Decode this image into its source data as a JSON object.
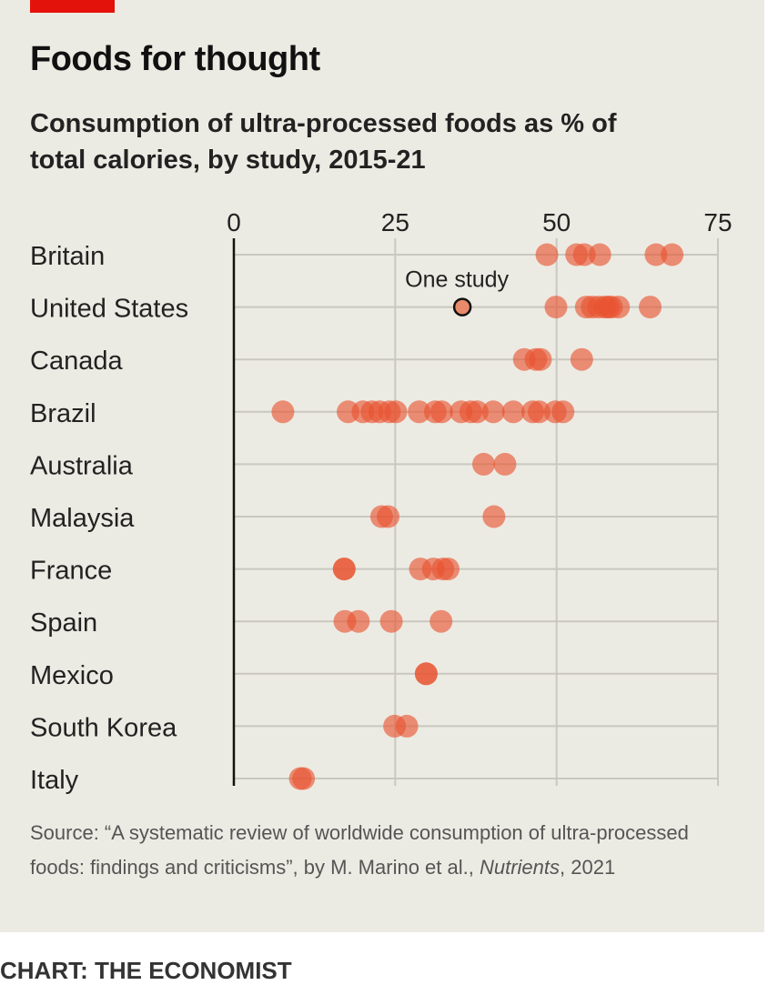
{
  "chart_data": {
    "type": "scatter",
    "title": "Foods for thought",
    "subtitle": "Consumption of ultra-processed foods as % of total calories, by study, 2015-21",
    "xlim": [
      0,
      75
    ],
    "xticks": [
      "0",
      "25",
      "50",
      "75"
    ],
    "xtick_values": [
      0,
      25,
      50,
      75
    ],
    "grid": true,
    "annotation": {
      "label": "One study",
      "country": "United States",
      "value": 35.4
    },
    "countries": [
      {
        "name": "Britain",
        "values": [
          48.5,
          53.1,
          54.3,
          56.7,
          65.4,
          67.9
        ]
      },
      {
        "name": "United States",
        "values": [
          35.4,
          49.9,
          54.6,
          55.5,
          56.5,
          57.5,
          58,
          58.5,
          59.6,
          64.5
        ]
      },
      {
        "name": "Canada",
        "values": [
          45,
          46.8,
          47.5,
          53.9
        ]
      },
      {
        "name": "Brazil",
        "values": [
          7.6,
          17.7,
          20,
          21.4,
          22.6,
          24.1,
          25.1,
          28.7,
          31.2,
          32.2,
          35.2,
          36.7,
          37.7,
          40.2,
          43.3,
          46.3,
          47.3,
          49.8,
          51
        ]
      },
      {
        "name": "Australia",
        "values": [
          38.7,
          42
        ]
      },
      {
        "name": "Malaysia",
        "values": [
          22.9,
          23.9,
          40.3
        ]
      },
      {
        "name": "France",
        "values": [
          17.1,
          17.1,
          28.9,
          30.9,
          32.4,
          33.2
        ]
      },
      {
        "name": "Spain",
        "values": [
          17.2,
          19.3,
          24.4,
          32.1
        ]
      },
      {
        "name": "Mexico",
        "values": [
          29.8,
          29.8
        ]
      },
      {
        "name": "South Korea",
        "values": [
          24.9,
          26.8
        ]
      },
      {
        "name": "Italy",
        "values": [
          10.3,
          10.8
        ]
      }
    ],
    "colors": {
      "dot": "#e8532f",
      "background": "#ecebe3",
      "accent": "#e3120b"
    }
  },
  "source": {
    "prefix": "Source: “A systematic review of worldwide consumption of ultra-processed foods: findings and criticisms”, by M. Marino et al., ",
    "journal": "Nutrients",
    "suffix": ", 2021"
  },
  "credit": "CHART: THE ECONOMIST"
}
